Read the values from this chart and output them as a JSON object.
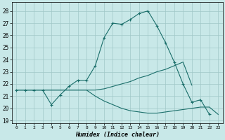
{
  "xlabel": "Humidex (Indice chaleur)",
  "bg_color": "#c8e8e8",
  "grid_color": "#a0c8c8",
  "line_color": "#1a6e6a",
  "xlim": [
    -0.5,
    23.5
  ],
  "ylim": [
    18.8,
    28.7
  ],
  "yticks": [
    19,
    20,
    21,
    22,
    23,
    24,
    25,
    26,
    27,
    28
  ],
  "xticks": [
    0,
    1,
    2,
    3,
    4,
    5,
    6,
    7,
    8,
    9,
    10,
    11,
    12,
    13,
    14,
    15,
    16,
    17,
    18,
    19,
    20,
    21,
    22,
    23
  ],
  "line1": {
    "x": [
      0,
      1,
      2,
      3,
      4,
      5,
      6,
      7,
      8,
      9,
      10,
      11,
      12,
      13,
      14,
      15,
      16,
      17,
      18,
      19,
      20,
      21,
      22
    ],
    "y": [
      21.5,
      21.5,
      21.5,
      21.5,
      20.3,
      21.1,
      21.8,
      22.3,
      22.3,
      23.5,
      25.8,
      27.0,
      26.9,
      27.3,
      27.8,
      28.0,
      26.8,
      25.4,
      23.8,
      22.0,
      20.5,
      20.7,
      19.5
    ],
    "marker": true
  },
  "line2": {
    "x": [
      0,
      1,
      2,
      3,
      4,
      5,
      6,
      7,
      8,
      9,
      10,
      11,
      12,
      13,
      14,
      15,
      16,
      17,
      18,
      19,
      20,
      21,
      22,
      23
    ],
    "y": [
      21.5,
      21.5,
      21.5,
      21.5,
      21.5,
      21.5,
      21.5,
      21.5,
      21.5,
      21.5,
      21.6,
      21.8,
      22.0,
      22.2,
      22.5,
      22.7,
      23.0,
      23.2,
      23.5,
      23.8,
      21.9,
      null,
      null,
      null
    ],
    "marker": false
  },
  "line3": {
    "x": [
      0,
      1,
      2,
      3,
      4,
      5,
      6,
      7,
      8,
      9,
      10,
      11,
      12,
      13,
      14,
      15,
      16,
      17,
      18,
      19,
      20,
      21,
      22,
      23
    ],
    "y": [
      21.5,
      21.5,
      21.5,
      21.5,
      21.5,
      21.5,
      21.5,
      21.5,
      21.5,
      21.0,
      20.6,
      20.3,
      20.0,
      19.8,
      19.7,
      19.6,
      19.6,
      19.7,
      19.8,
      19.9,
      20.0,
      20.1,
      20.1,
      19.5
    ],
    "marker": false
  }
}
